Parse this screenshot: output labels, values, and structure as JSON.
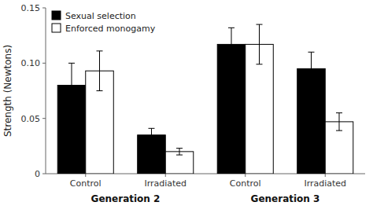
{
  "chart_data": {
    "type": "bar",
    "ylabel": "Strength (Newtons)",
    "categories": [
      "Control",
      "Irradiated",
      "Control",
      "Irradiated"
    ],
    "series": [
      {
        "name": "Sexual selection",
        "color": "#000000",
        "values": [
          0.08,
          0.035,
          0.117,
          0.095
        ],
        "errors": [
          0.02,
          0.006,
          0.015,
          0.015
        ]
      },
      {
        "name": "Enforced monogamy",
        "color": "#ffffff",
        "values": [
          0.093,
          0.02,
          0.117,
          0.047
        ],
        "errors": [
          0.018,
          0.003,
          0.018,
          0.008
        ]
      }
    ],
    "ylim": [
      0,
      0.15
    ],
    "yticks": [
      0,
      0.05,
      {
        "value": 0.1,
        "label": "0.10"
      },
      0.15
    ],
    "legend": "upper left",
    "annotations": [
      "Generation 2",
      "Generation 3"
    ]
  }
}
